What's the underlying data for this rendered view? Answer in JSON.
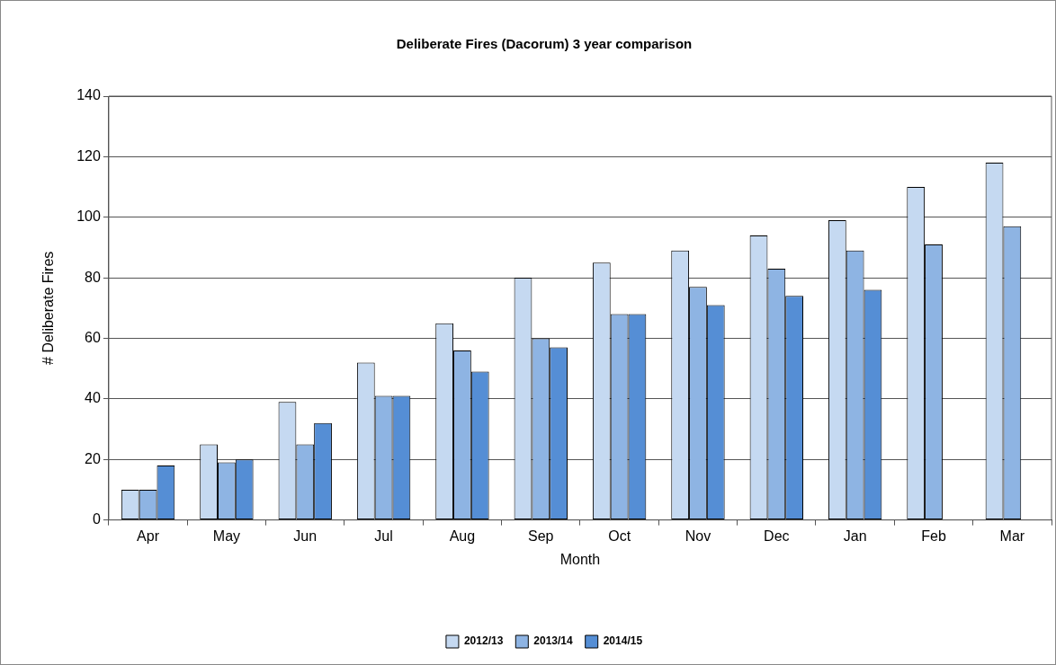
{
  "chart_data": {
    "type": "bar",
    "title": "Deliberate Fires (Dacorum) 3 year comparison",
    "xlabel": "Month",
    "ylabel": "# Deliberate Fires",
    "categories": [
      "Apr",
      "May",
      "Jun",
      "Jul",
      "Aug",
      "Sep",
      "Oct",
      "Nov",
      "Dec",
      "Jan",
      "Feb",
      "Mar"
    ],
    "series": [
      {
        "name": "2012/13",
        "color": "#c5d9f1",
        "values": [
          10,
          25,
          39,
          52,
          65,
          80,
          85,
          89,
          94,
          99,
          110,
          118
        ]
      },
      {
        "name": "2013/14",
        "color": "#8eb4e3",
        "values": [
          10,
          19,
          25,
          41,
          56,
          60,
          68,
          77,
          83,
          89,
          91,
          97
        ]
      },
      {
        "name": "2014/15",
        "color": "#558ed5",
        "values": [
          18,
          20,
          32,
          41,
          49,
          57,
          68,
          71,
          74,
          76,
          null,
          null
        ]
      }
    ],
    "ylim": [
      0,
      140
    ],
    "yticks": [
      0,
      20,
      40,
      60,
      80,
      100,
      120,
      140
    ],
    "grid": "y",
    "legend": "bottom"
  }
}
